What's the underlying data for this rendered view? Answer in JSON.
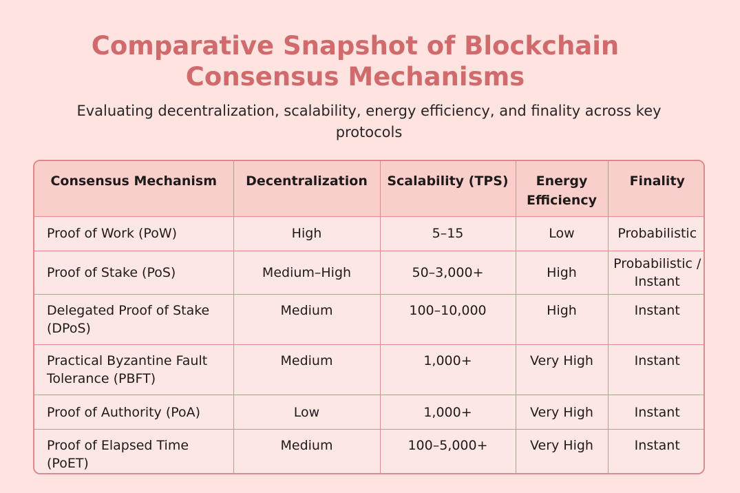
{
  "title": {
    "line1": "Comparative Snapshot of Blockchain",
    "line2": "Consensus Mechanisms"
  },
  "subtitle": "Evaluating decentralization, scalability, energy efficiency, and finality across key protocols",
  "table": {
    "headers": [
      "Consensus Mechanism",
      "Decentralization",
      "Scalability (TPS)",
      "Energy Efficiency",
      "Finality"
    ],
    "rows": [
      [
        "Proof of Work (PoW)",
        "High",
        "5–15",
        "Low",
        "Probabilistic"
      ],
      [
        "Proof of Stake (PoS)",
        "Medium–High",
        "50–3,000+",
        "High",
        "Probabilistic / Instant"
      ],
      [
        "Delegated Proof of Stake (DPoS)",
        "Medium",
        "100–10,000",
        "High",
        "Instant"
      ],
      [
        "Practical Byzantine Fault Tolerance (PBFT)",
        "Medium",
        "1,000+",
        "Very High",
        "Instant"
      ],
      [
        "Proof of Authority (PoA)",
        "Low",
        "1,000+",
        "Very High",
        "Instant"
      ],
      [
        "Proof of Elapsed Time (PoET)",
        "Medium",
        "100–5,000+",
        "Very High",
        "Instant"
      ]
    ]
  },
  "colors": {
    "background": "#fde4e1",
    "title": "#d06a6c",
    "header_bg": "#f9cfcc",
    "border": "#dc8a8b"
  }
}
